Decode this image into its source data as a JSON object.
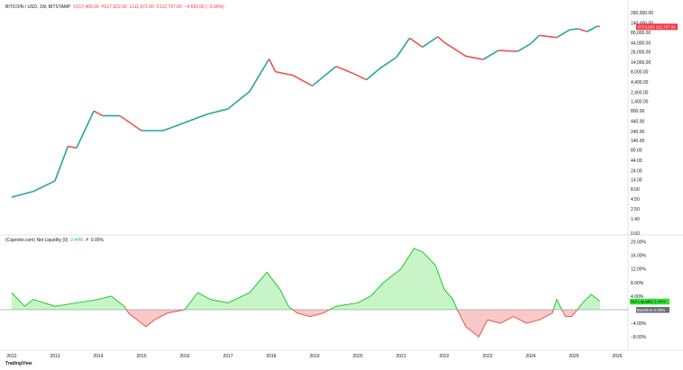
{
  "header": {
    "symbol": "BITCOIN / USD, 1W, BITSTAMP",
    "open": "O117,465.00",
    "high": "H117,622.00",
    "low": "L111,972.00",
    "close": "C112,797.00",
    "change": "−4,693.00 (−3.99%)"
  },
  "indicator": {
    "label": "(Caprioto.com) Net Liquidity (0)",
    "value": "2.44%",
    "sep": "#",
    "baseline": "0.00%"
  },
  "branding": "TradingView",
  "colors": {
    "up": "#26a69a",
    "down": "#ef5350",
    "liq_line": "#22c52a",
    "liq_fill_pos": "#c8f5c8",
    "liq_fill_neg": "#f9c9c9",
    "price_label": "#f23645"
  },
  "chart_data": [
    {
      "type": "line",
      "scale": "log",
      "ylabel": "",
      "price_label": {
        "name": "BTCUSD",
        "value": "112,797.00"
      },
      "y_ticks": [
        "260,000.00",
        "140,000.00",
        "80,000.00",
        "44,000.00",
        "26,000.00",
        "14,000.00",
        "8,000.00",
        "4,400.00",
        "2,400.00",
        "1,400.00",
        "800.00",
        "440.00",
        "240.00",
        "140.00",
        "80.00",
        "44.00",
        "24.00",
        "14.00",
        "8.00",
        "4.50",
        "2.50",
        "1.40",
        "0.60"
      ],
      "y_tick_values": [
        260000,
        140000,
        80000,
        44000,
        26000,
        14000,
        8000,
        4400,
        2400,
        1400,
        800,
        440,
        240,
        140,
        80,
        44,
        24,
        14,
        8,
        4.5,
        2.5,
        1.4,
        0.6
      ],
      "x": [
        2012.0,
        2012.5,
        2013.0,
        2013.3,
        2013.5,
        2013.9,
        2014.1,
        2014.5,
        2015.0,
        2015.5,
        2016.0,
        2016.5,
        2017.0,
        2017.5,
        2017.95,
        2018.1,
        2018.5,
        2018.95,
        2019.5,
        2019.9,
        2020.2,
        2020.5,
        2020.9,
        2021.2,
        2021.5,
        2021.85,
        2022.0,
        2022.5,
        2022.9,
        2023.25,
        2023.7,
        2024.0,
        2024.2,
        2024.6,
        2024.9,
        2025.1,
        2025.3,
        2025.55,
        2025.6
      ],
      "y": [
        5,
        7,
        13,
        100,
        90,
        800,
        600,
        600,
        250,
        250,
        400,
        650,
        900,
        2500,
        17000,
        8000,
        6500,
        3500,
        11000,
        7200,
        5000,
        9500,
        19000,
        58000,
        34000,
        63000,
        45000,
        20000,
        16500,
        28000,
        26500,
        42000,
        68000,
        60000,
        95000,
        100000,
        85000,
        118000,
        112797
      ]
    },
    {
      "type": "area",
      "series": [
        {
          "name": "Net Liquidity",
          "last_value": "2.44%"
        },
        {
          "name": "Baseline",
          "last_value": "0.00%"
        }
      ],
      "y_ticks": [
        "20.00%",
        "16.00%",
        "12.00%",
        "8.00%",
        "4.00%",
        "−4.00%",
        "−8.00%"
      ],
      "y_tick_values": [
        20,
        16,
        12,
        8,
        4,
        -4,
        -8
      ],
      "x": [
        2012.0,
        2012.3,
        2012.5,
        2013.0,
        2013.5,
        2014.0,
        2014.3,
        2014.6,
        2014.7,
        2015.1,
        2015.3,
        2015.6,
        2016.0,
        2016.3,
        2016.6,
        2017.0,
        2017.5,
        2017.9,
        2018.2,
        2018.4,
        2018.6,
        2018.9,
        2019.2,
        2019.5,
        2020.0,
        2020.3,
        2020.6,
        2021.0,
        2021.3,
        2021.5,
        2021.8,
        2022.0,
        2022.2,
        2022.3,
        2022.5,
        2022.8,
        2023.0,
        2023.3,
        2023.6,
        2023.9,
        2024.2,
        2024.5,
        2024.6,
        2024.8,
        2024.95,
        2025.2,
        2025.4,
        2025.6
      ],
      "y": [
        5,
        1,
        3,
        1,
        2,
        3,
        4,
        1,
        -1,
        -5,
        -3,
        -1,
        0,
        5,
        3,
        2,
        5,
        11,
        6,
        1,
        -1,
        -2,
        -1,
        1,
        2,
        4,
        8,
        12,
        18,
        17,
        13,
        6,
        3,
        0,
        -5,
        -8,
        -3,
        -4,
        -2,
        -4,
        -3,
        -1,
        3,
        -2,
        -2,
        2,
        4.5,
        2.44
      ]
    }
  ],
  "x_ticks": [
    "2012",
    "2013",
    "2014",
    "2015",
    "2016",
    "2017",
    "2018",
    "2019",
    "2020",
    "2021",
    "2022",
    "2023",
    "2024",
    "2025",
    "2026"
  ]
}
